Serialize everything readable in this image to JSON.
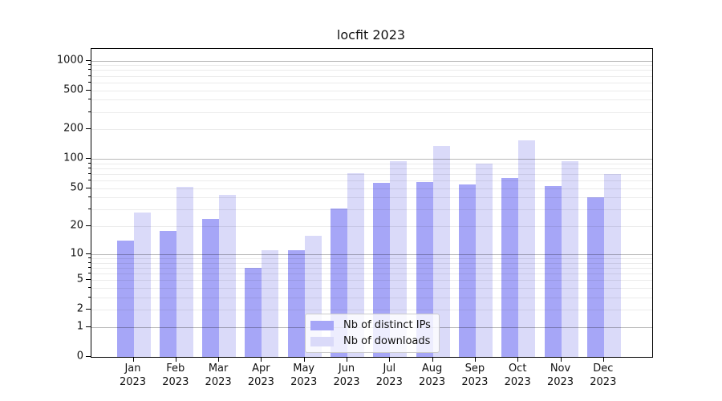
{
  "chart_data": {
    "type": "bar",
    "title": "locfit 2023",
    "yscale": "log10(1+y)",
    "ylim": [
      0,
      1310
    ],
    "grid": "major decades dark, log minors light, drawn over bars",
    "legend_position": "lower center",
    "categories": [
      "Jan 2023",
      "Feb 2023",
      "Mar 2023",
      "Apr 2023",
      "May 2023",
      "Jun 2023",
      "Jul 2023",
      "Aug 2023",
      "Sep 2023",
      "Oct 2023",
      "Nov 2023",
      "Dec 2023"
    ],
    "series": [
      {
        "name": "Nb of distinct IPs",
        "color": "#a6a6f7",
        "values": [
          14,
          18,
          24,
          7,
          11,
          31,
          57,
          58,
          55,
          64,
          53,
          40
        ]
      },
      {
        "name": "Nb of downloads",
        "color": "#dadaf9",
        "values": [
          28,
          52,
          43,
          11,
          16,
          72,
          95,
          135,
          89,
          155,
          95,
          70
        ]
      }
    ]
  },
  "y_axis": {
    "tick_values": [
      1000,
      500,
      200,
      100,
      50,
      20,
      10,
      5,
      2,
      1,
      0
    ],
    "tick_labels": [
      "1000",
      "500",
      "200",
      "100",
      "50",
      "20",
      "10",
      "5",
      "2",
      "1",
      "0"
    ],
    "major_values": [
      1,
      10,
      100,
      1000
    ],
    "minor_values": [
      2,
      3,
      4,
      5,
      6,
      7,
      8,
      9,
      20,
      30,
      40,
      50,
      60,
      70,
      80,
      90,
      200,
      300,
      400,
      500,
      600,
      700,
      800,
      900
    ]
  },
  "x_axis": {
    "months": [
      "Jan",
      "Feb",
      "Mar",
      "Apr",
      "May",
      "Jun",
      "Jul",
      "Aug",
      "Sep",
      "Oct",
      "Nov",
      "Dec"
    ],
    "year": "2023"
  },
  "legend": {
    "items": [
      {
        "label": "Nb of distinct IPs",
        "series": 0
      },
      {
        "label": "Nb of downloads",
        "series": 1
      }
    ]
  },
  "colors": {
    "distinct_ips_bar": "#a6a6f7",
    "downloads_bar": "#dadaf9",
    "major_grid": "rgba(0,0,0,0.28)",
    "minor_grid": "rgba(0,0,0,0.08)",
    "axis_frame": "#000000"
  }
}
